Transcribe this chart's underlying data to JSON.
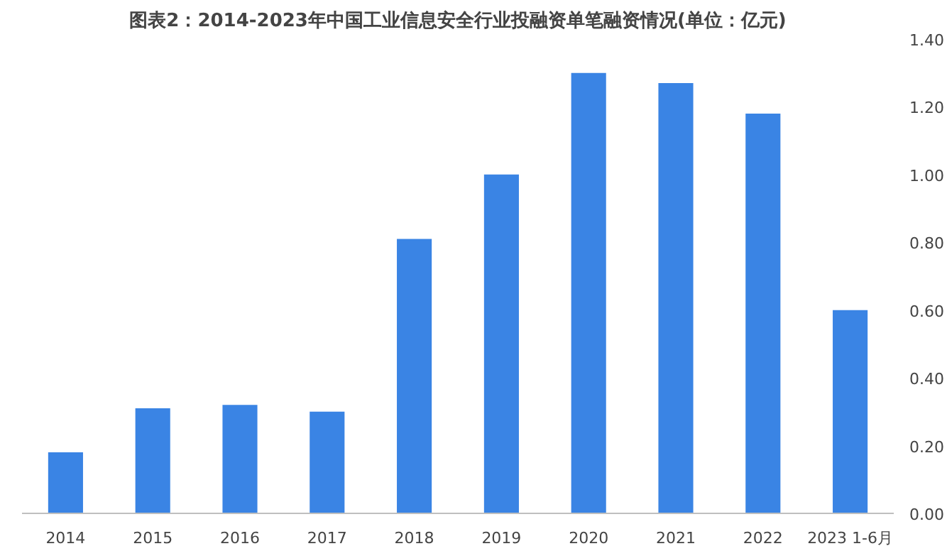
{
  "chart_data": {
    "type": "bar",
    "title": "图表2：2014-2023年中国工业信息安全行业投融资单笔融资情况(单位：亿元)",
    "categories": [
      "2014",
      "2015",
      "2016",
      "2017",
      "2018",
      "2019",
      "2020",
      "2021",
      "2022",
      "2023 1-6月"
    ],
    "values": [
      0.18,
      0.31,
      0.32,
      0.3,
      0.81,
      1.0,
      1.3,
      1.27,
      1.18,
      0.6
    ],
    "color": "#3a84e4",
    "ylim": [
      0,
      1.4
    ],
    "yticks": [
      {
        "value": 0,
        "label": "0.00"
      },
      {
        "value": 0.2,
        "label": "0.20"
      },
      {
        "value": 0.4,
        "label": "0.40"
      },
      {
        "value": 0.6,
        "label": "0.60"
      },
      {
        "value": 0.8,
        "label": "0.80"
      },
      {
        "value": 1.0,
        "label": "1.00"
      },
      {
        "value": 1.2,
        "label": "1.20"
      },
      {
        "value": 1.4,
        "label": "1.40"
      }
    ],
    "grid": false,
    "legend": false
  }
}
